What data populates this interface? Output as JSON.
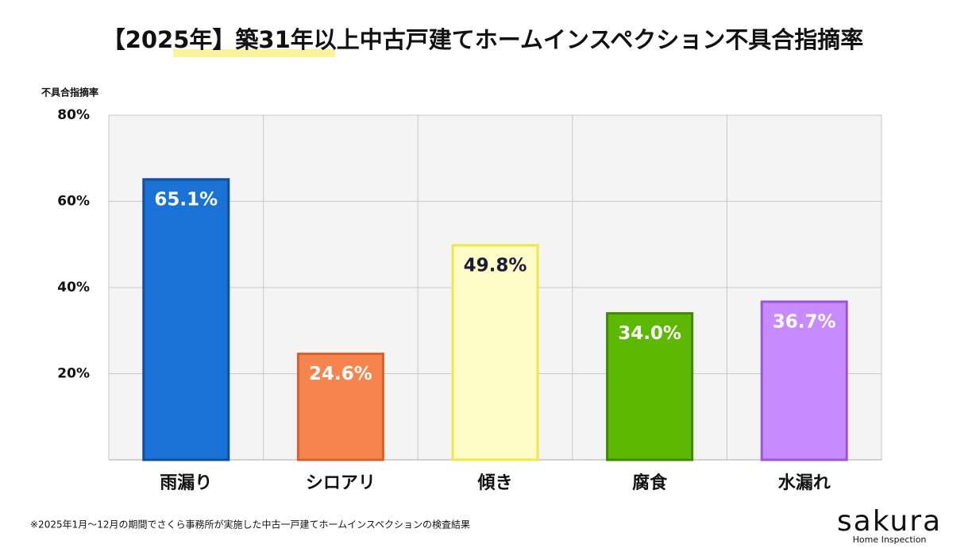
{
  "chart_data": {
    "type": "bar",
    "title": "【2025年】築31年以上中古戸建てホームインスペクション不具合指摘率",
    "y_label": "不具合指摘率",
    "categories": [
      "雨漏り",
      "シロアリ",
      "傾き",
      "腐食",
      "水漏れ"
    ],
    "values": [
      65.1,
      24.6,
      49.8,
      34.0,
      36.7
    ],
    "value_labels": [
      "65.1%",
      "24.6%",
      "49.8%",
      "34.0%",
      "36.7%"
    ],
    "colors": [
      "#1a72d6",
      "#f5844f",
      "#fdfbc6",
      "#5cb800",
      "#c88aff"
    ],
    "border_colors": [
      "#0f4f9e",
      "#d9602c",
      "#f0e84a",
      "#3f8a00",
      "#9a55d8"
    ],
    "value_label_colors": [
      "#ffffff",
      "#ffffff",
      "#1c1c3a",
      "#ffffff",
      "#ffffff"
    ],
    "ylim": [
      0,
      80
    ],
    "yticks": [
      {
        "value": 20,
        "label": "20%"
      },
      {
        "value": 40,
        "label": "40%"
      },
      {
        "value": 60,
        "label": "60%"
      },
      {
        "value": 80,
        "label": "80%"
      }
    ],
    "grid": true
  },
  "footer": {
    "note": "※2025年1月～12月の期間でさくら事務所が実施した中古一戸建てホームインスペクションの検査結果",
    "logo": "sakura",
    "logo_sub": "Home Inspection"
  }
}
